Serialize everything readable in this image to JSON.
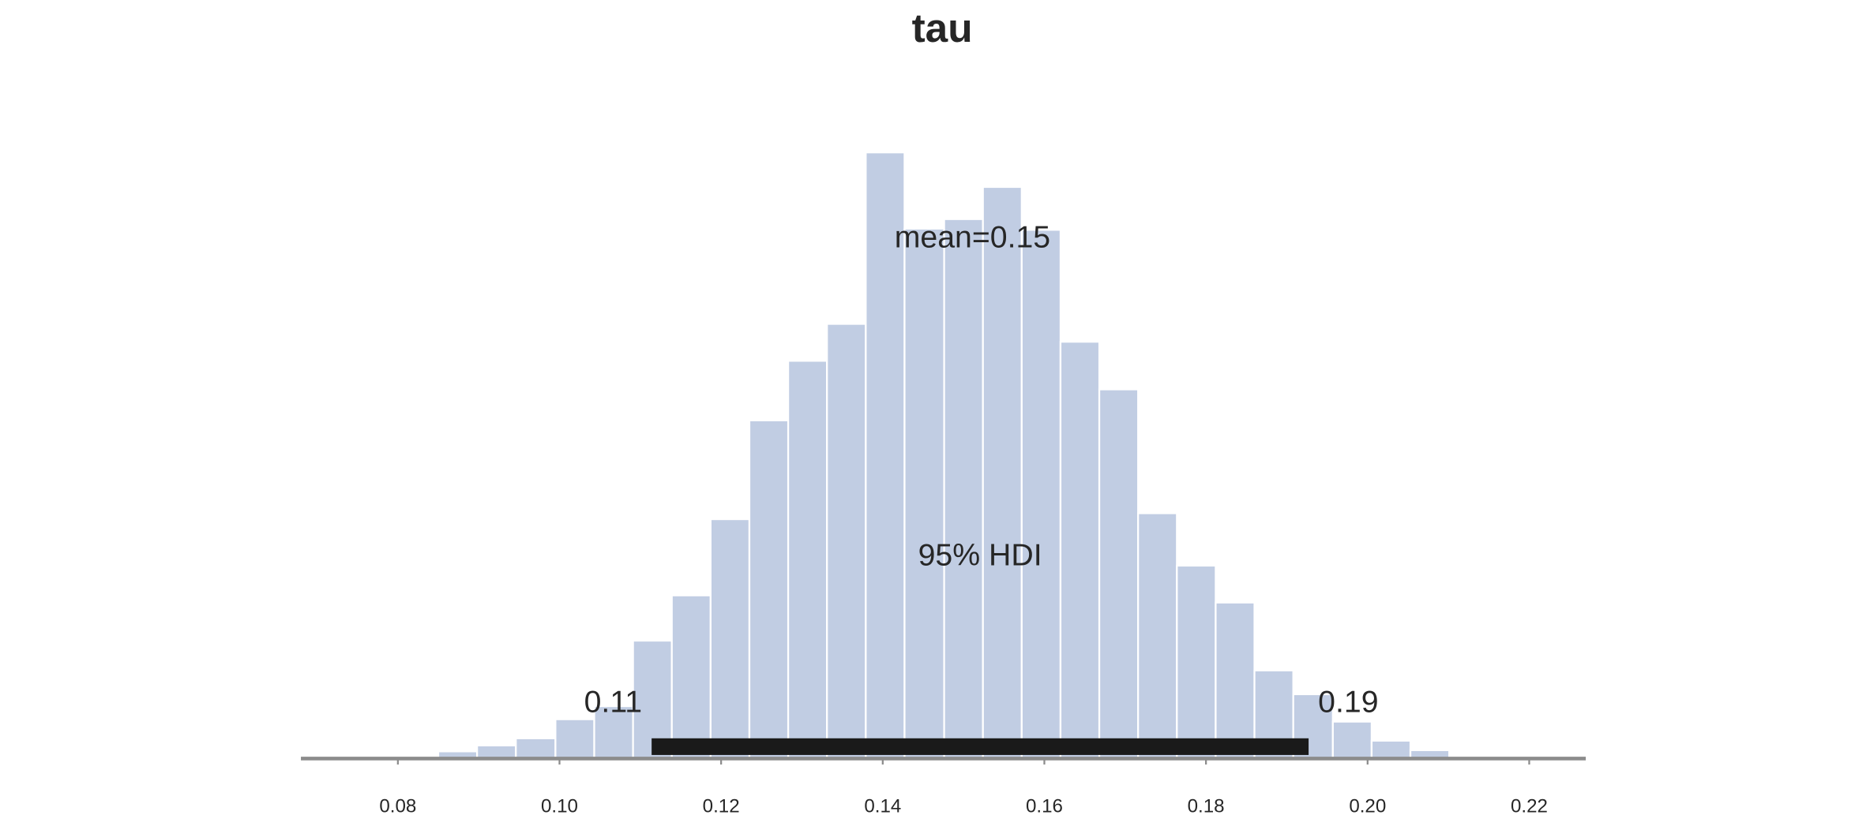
{
  "chart_data": {
    "type": "histogram",
    "title": "tau",
    "bins": [
      0.0754,
      0.0802,
      0.085,
      0.0898,
      0.0946,
      0.0995,
      0.1043,
      0.1091,
      0.1139,
      0.1187,
      0.1235,
      0.1283,
      0.1331,
      0.1379,
      0.1427,
      0.1476,
      0.1524,
      0.1572,
      0.162,
      0.1668,
      0.1716,
      0.1764,
      0.1812,
      0.186,
      0.1908,
      0.1957,
      0.2005,
      0.2053,
      0.2101,
      0.2149
    ],
    "values": [
      1,
      1,
      6,
      11,
      17,
      33,
      44,
      99,
      137,
      201,
      284,
      334,
      365,
      509,
      445,
      453,
      480,
      444,
      350,
      310,
      206,
      162,
      131,
      74,
      54,
      31,
      15,
      7,
      2
    ],
    "color": "#c1cde3",
    "xlim": [
      0.068,
      0.227
    ],
    "ylim": [
      0,
      550
    ],
    "xticks": [
      0.08,
      {
        "value": 0.1,
        "label": "0.10"
      },
      0.12,
      0.14,
      0.16,
      0.18,
      {
        "value": 0.2,
        "label": "0.20"
      },
      0.22
    ],
    "mean": 0.1511,
    "mean_label": "mean=0.15",
    "hdi": [
      0.1114,
      0.1927
    ],
    "hdi_labels": [
      "0.11",
      "0.19"
    ],
    "hdi_label": "95% HDI",
    "hdi_color": "#1a1a1a"
  }
}
